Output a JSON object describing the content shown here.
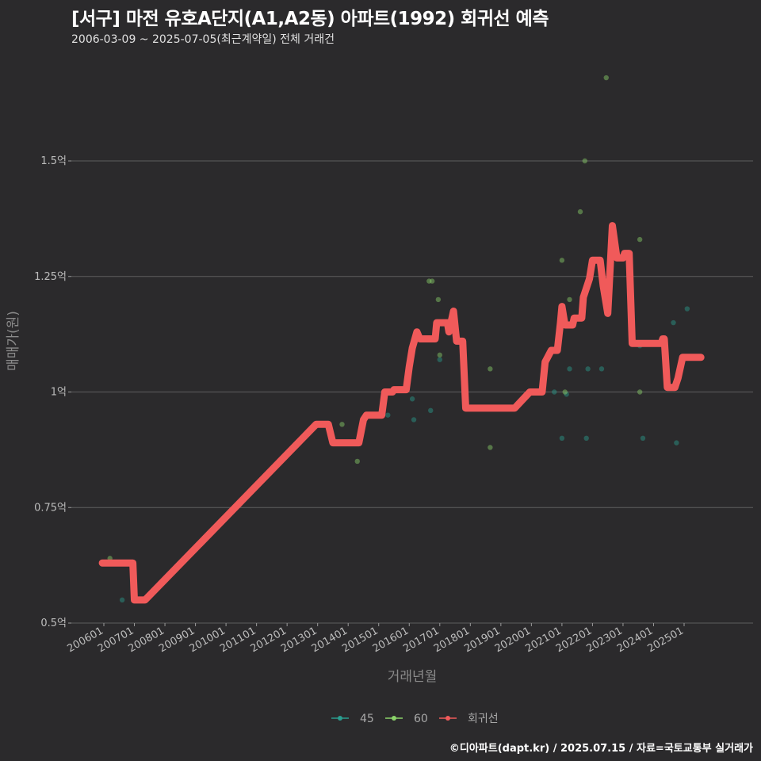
{
  "title": "[서구] 마전 유호A단지(A1,A2동) 아파트(1992) 회귀선 예측",
  "subtitle": "2006-03-09 ~ 2025-07-05(최근계약일) 전체 거래건",
  "footer": "©디아파트(dapt.kr) / 2025.07.15 / 자료=국토교통부 실거래가",
  "colors": {
    "background": "#2b2a2c",
    "grid": "#5e5e5e",
    "series_45": "#2a9d8f",
    "series_60": "#8bd36a",
    "regression": "#f05a5a"
  },
  "chart_data": {
    "type": "scatter",
    "xlabel": "거래년월",
    "ylabel": "매매가(원)",
    "xlim": [
      2005.5,
      2026.8
    ],
    "ylim": [
      0.5,
      1.7
    ],
    "x_ticks": [
      {
        "value": 2006,
        "label": "200601"
      },
      {
        "value": 2007,
        "label": "200701"
      },
      {
        "value": 2008,
        "label": "200801"
      },
      {
        "value": 2009,
        "label": "200901"
      },
      {
        "value": 2010,
        "label": "201001"
      },
      {
        "value": 2011,
        "label": "201101"
      },
      {
        "value": 2012,
        "label": "201201"
      },
      {
        "value": 2013,
        "label": "201301"
      },
      {
        "value": 2014,
        "label": "201401"
      },
      {
        "value": 2015,
        "label": "201501"
      },
      {
        "value": 2016,
        "label": "201601"
      },
      {
        "value": 2017,
        "label": "201701"
      },
      {
        "value": 2018,
        "label": "201801"
      },
      {
        "value": 2019,
        "label": "201901"
      },
      {
        "value": 2020,
        "label": "202001"
      },
      {
        "value": 2021,
        "label": "202101"
      },
      {
        "value": 2022,
        "label": "202201"
      },
      {
        "value": 2023,
        "label": "202301"
      },
      {
        "value": 2024,
        "label": "202401"
      },
      {
        "value": 2025,
        "label": "202501"
      }
    ],
    "y_ticks": [
      {
        "value": 0.5,
        "label": "0.5억"
      },
      {
        "value": 0.75,
        "label": "0.75억"
      },
      {
        "value": 1.0,
        "label": "1억"
      },
      {
        "value": 1.25,
        "label": "1.25억"
      },
      {
        "value": 1.5,
        "label": "1.5억"
      }
    ],
    "legend": [
      {
        "key": "45",
        "label": "45"
      },
      {
        "key": "60",
        "label": "60"
      },
      {
        "key": "regression",
        "label": "회귀선"
      }
    ],
    "series": [
      {
        "name": "45",
        "points": [
          [
            2006.6,
            0.55
          ],
          [
            2015.3,
            0.95
          ],
          [
            2016.1,
            0.985
          ],
          [
            2016.15,
            0.94
          ],
          [
            2016.7,
            0.96
          ],
          [
            2017.0,
            1.07
          ],
          [
            2020.75,
            1.0
          ],
          [
            2021.0,
            0.9
          ],
          [
            2021.15,
            0.995
          ],
          [
            2021.25,
            1.05
          ],
          [
            2021.8,
            0.9
          ],
          [
            2021.85,
            1.05
          ],
          [
            2022.3,
            1.05
          ],
          [
            2023.55,
            1.1
          ],
          [
            2023.65,
            0.9
          ],
          [
            2024.65,
            1.15
          ],
          [
            2024.75,
            0.89
          ],
          [
            2025.1,
            1.18
          ]
        ]
      },
      {
        "name": "60",
        "points": [
          [
            2006.2,
            0.64
          ],
          [
            2013.8,
            0.93
          ],
          [
            2014.3,
            0.85
          ],
          [
            2016.65,
            1.24
          ],
          [
            2016.75,
            1.24
          ],
          [
            2016.95,
            1.2
          ],
          [
            2017.0,
            1.08
          ],
          [
            2018.65,
            0.88
          ],
          [
            2018.65,
            1.05
          ],
          [
            2021.0,
            1.285
          ],
          [
            2021.1,
            1.0
          ],
          [
            2021.25,
            1.2
          ],
          [
            2021.6,
            1.39
          ],
          [
            2021.75,
            1.5
          ],
          [
            2022.45,
            1.68
          ],
          [
            2023.55,
            1.33
          ],
          [
            2023.55,
            1.0
          ]
        ]
      }
    ],
    "regression_line": [
      [
        2005.95,
        0.63
      ],
      [
        2006.95,
        0.63
      ],
      [
        2007.0,
        0.55
      ],
      [
        2007.35,
        0.55
      ],
      [
        2012.95,
        0.93
      ],
      [
        2013.35,
        0.93
      ],
      [
        2013.5,
        0.89
      ],
      [
        2014.35,
        0.89
      ],
      [
        2014.5,
        0.94
      ],
      [
        2014.6,
        0.95
      ],
      [
        2015.1,
        0.95
      ],
      [
        2015.2,
        1.0
      ],
      [
        2015.45,
        1.0
      ],
      [
        2015.5,
        1.005
      ],
      [
        2015.9,
        1.005
      ],
      [
        2016.0,
        1.055
      ],
      [
        2016.1,
        1.095
      ],
      [
        2016.25,
        1.13
      ],
      [
        2016.35,
        1.115
      ],
      [
        2016.85,
        1.115
      ],
      [
        2016.9,
        1.15
      ],
      [
        2017.25,
        1.15
      ],
      [
        2017.3,
        1.13
      ],
      [
        2017.45,
        1.175
      ],
      [
        2017.55,
        1.11
      ],
      [
        2017.75,
        1.11
      ],
      [
        2017.85,
        0.965
      ],
      [
        2019.45,
        0.965
      ],
      [
        2019.95,
        1.0
      ],
      [
        2020.35,
        1.0
      ],
      [
        2020.45,
        1.065
      ],
      [
        2020.65,
        1.09
      ],
      [
        2020.85,
        1.09
      ],
      [
        2020.95,
        1.15
      ],
      [
        2021.0,
        1.185
      ],
      [
        2021.1,
        1.145
      ],
      [
        2021.35,
        1.145
      ],
      [
        2021.4,
        1.16
      ],
      [
        2021.65,
        1.16
      ],
      [
        2021.7,
        1.205
      ],
      [
        2021.9,
        1.245
      ],
      [
        2022.0,
        1.285
      ],
      [
        2022.25,
        1.285
      ],
      [
        2022.35,
        1.23
      ],
      [
        2022.5,
        1.17
      ],
      [
        2022.65,
        1.36
      ],
      [
        2022.8,
        1.29
      ],
      [
        2023.0,
        1.29
      ],
      [
        2023.05,
        1.3
      ],
      [
        2023.2,
        1.3
      ],
      [
        2023.3,
        1.105
      ],
      [
        2024.25,
        1.105
      ],
      [
        2024.3,
        1.115
      ],
      [
        2024.35,
        1.115
      ],
      [
        2024.45,
        1.01
      ],
      [
        2024.7,
        1.01
      ],
      [
        2024.8,
        1.03
      ],
      [
        2024.95,
        1.075
      ],
      [
        2025.55,
        1.075
      ]
    ]
  }
}
